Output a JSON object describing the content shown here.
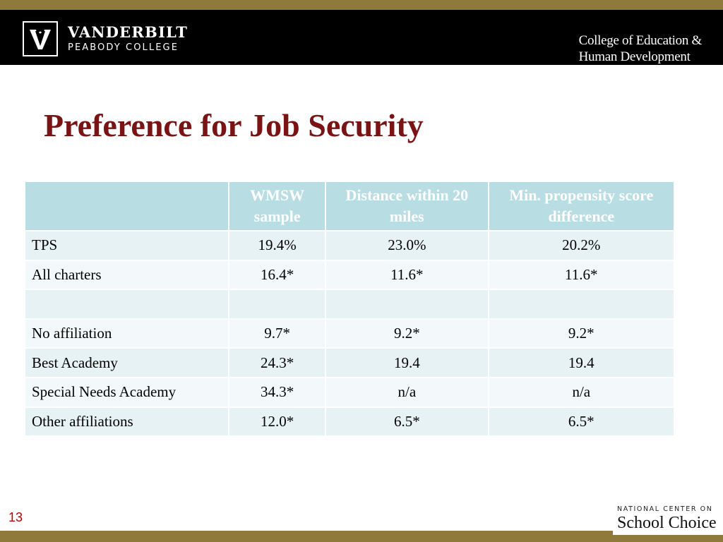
{
  "header": {
    "logo": {
      "name": "VANDERBILT",
      "sub": "PEABODY COLLEGE"
    },
    "college_line1": "College of Education &",
    "college_line2": "Human Development"
  },
  "slide": {
    "title": "Preference for Job Security",
    "page_number": "13"
  },
  "table": {
    "columns": [
      "",
      "WMSW sample",
      "Distance within 20 miles",
      "Min. propensity score difference"
    ],
    "rows": [
      [
        "TPS",
        "19.4%",
        "23.0%",
        "20.2%"
      ],
      [
        "All charters",
        "16.4*",
        "11.6*",
        "11.6*"
      ],
      [
        "",
        "",
        "",
        ""
      ],
      [
        "No affiliation",
        "9.7*",
        "9.2*",
        "9.2*"
      ],
      [
        "Best Academy",
        "24.3*",
        "19.4",
        "19.4"
      ],
      [
        "Special Needs Academy",
        "34.3*",
        "n/a",
        "n/a"
      ],
      [
        "Other affiliations",
        "12.0*",
        "6.5*",
        "6.5*"
      ]
    ]
  },
  "footer_logo": {
    "top": "NATIONAL CENTER ON",
    "bottom": "School Choice"
  },
  "colors": {
    "title": "#7a1414",
    "accent_stripe": "#8f7a3c",
    "table_header": "#b8dde3",
    "page_number": "#c00000"
  }
}
